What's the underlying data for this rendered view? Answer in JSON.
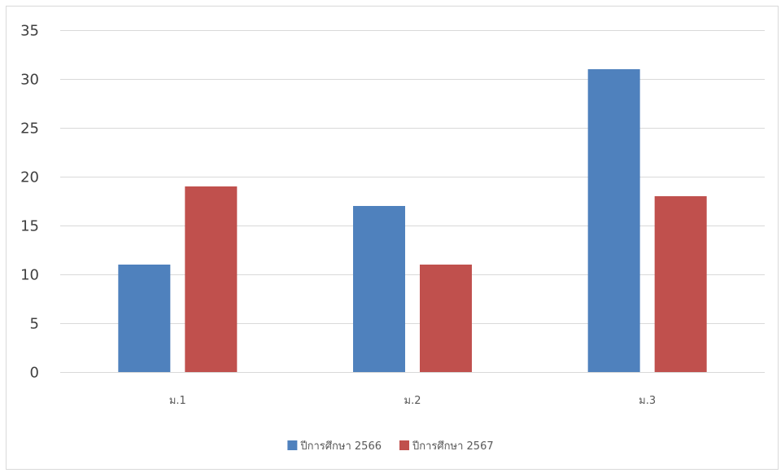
{
  "chart_data": {
    "type": "bar",
    "categories": [
      "ม.1",
      "ม.2",
      "ม.3"
    ],
    "series": [
      {
        "name": "ปีการศึกษา 2566",
        "values": [
          11,
          17,
          31
        ],
        "color": "#4f81bd"
      },
      {
        "name": "ปีการศึกษา 2567",
        "values": [
          19,
          11,
          18
        ],
        "color": "#c0504d"
      }
    ],
    "title": "",
    "xlabel": "",
    "ylabel": "",
    "ylim": [
      0,
      35
    ],
    "yticks": [
      0,
      5,
      10,
      15,
      20,
      25,
      30,
      35
    ],
    "grid": true,
    "legend_position": "bottom"
  }
}
